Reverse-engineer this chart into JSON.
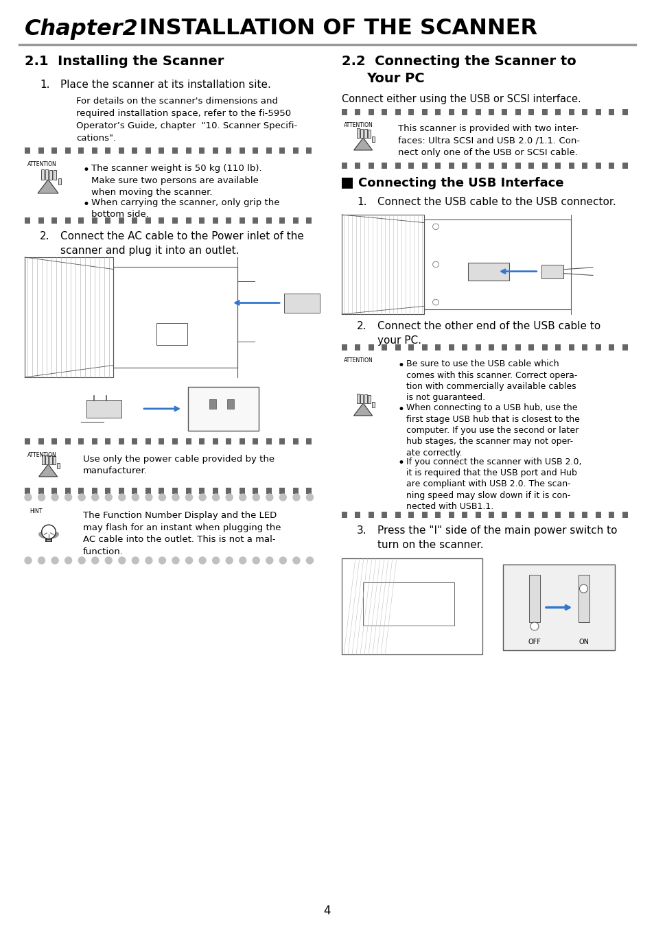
{
  "bg_color": "#ffffff",
  "chapter_italic": "Chapter2",
  "chapter_title": "INSTALLATION OF THE SCANNER",
  "page_num": "4",
  "sq_color": "#666666",
  "circle_color": "#bbbbbb",
  "section21_title": "2.1  Installing the Scanner",
  "item1_text": "Place the scanner at its installation site.",
  "item1_sub": "For details on the scanner's dimensions and\nrequired installation space, refer to the fi-5950\nOperator’s Guide, chapter  \"10. Scanner Specifi-\ncations\".",
  "attn1_bullet1": "The scanner weight is 50 kg (110 lb).\nMake sure two persons are available\nwhen moving the scanner.",
  "attn1_bullet2": "When carrying the scanner, only grip the\nbottom side.",
  "item2_text": "Connect the AC cable to the Power inlet of the\nscanner and plug it into an outlet.",
  "attn_ac_text": "Use only the power cable provided by the\nmanufacturer.",
  "hint_text": "The Function Number Display and the LED\nmay flash for an instant when plugging the\nAC cable into the outlet. This is not a mal-\nfunction.",
  "section22_title_line1": "2.2  Connecting the Scanner to",
  "section22_title_line2": "      Your PC",
  "section22_intro": "Connect either using the USB or SCSI interface.",
  "attn2_text": "This scanner is provided with two inter-\nfaces: Ultra SCSI and USB 2.0 /1.1. Con-\nnect only one of the USB or SCSI cable.",
  "usb_title": "Connecting the USB Interface",
  "usb1_text": "Connect the USB cable to the USB connector.",
  "usb2_text": "Connect the other end of the USB cable to\nyour PC.",
  "attn_usb_b1": "Be sure to use the USB cable which\ncomes with this scanner. Correct opera-\ntion with commercially available cables\nis not guaranteed.",
  "attn_usb_b2": "When connecting to a USB hub, use the\nfirst stage USB hub that is closest to the\ncomputer. If you use the second or later\nhub stages, the scanner may not oper-\nate correctly.",
  "attn_usb_b3": "If you connect the scanner with USB 2.0,\nit is required that the USB port and Hub\nare compliant with USB 2.0. The scan-\nning speed may slow down if it is con-\nnected with USB1.1.",
  "usb3_text": "Press the \"I\" side of the main power switch to\nturn on the scanner."
}
